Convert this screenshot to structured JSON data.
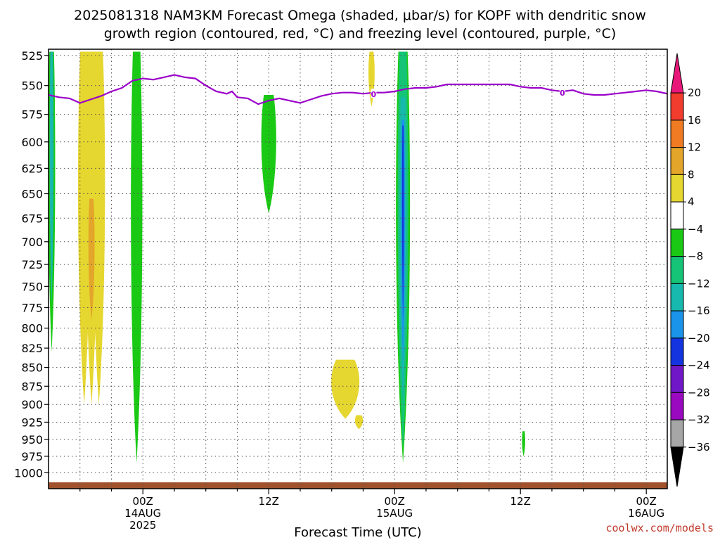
{
  "chart_data": {
    "type": "heatmap",
    "title_line1": "2025081318 NAM3KM Forecast Omega (shaded, μbar/s) for KOPF with dendritic snow",
    "title_line2": "growth region (contoured, red, °C) and freezing level (contoured, purple, °C)",
    "xlabel": "Forecast Time (UTC)",
    "ylabel": "",
    "y_axis": {
      "ticks": [
        525,
        550,
        575,
        600,
        625,
        650,
        675,
        700,
        725,
        750,
        775,
        800,
        825,
        850,
        875,
        900,
        925,
        950,
        975,
        1000
      ],
      "range": [
        1025,
        520
      ],
      "scale": "log-pressure"
    },
    "x_axis": {
      "range_hours": [
        -9,
        50
      ],
      "ticks": [
        {
          "hour": 0,
          "lines": [
            "00Z",
            "14AUG",
            "2025"
          ]
        },
        {
          "hour": 12,
          "lines": [
            "12Z"
          ]
        },
        {
          "hour": 24,
          "lines": [
            "00Z",
            "15AUG"
          ]
        },
        {
          "hour": 36,
          "lines": [
            "12Z"
          ]
        },
        {
          "hour": 48,
          "lines": [
            "00Z",
            "16AUG"
          ]
        }
      ]
    },
    "grid": true,
    "colorbar": {
      "labels": [
        "20",
        "16",
        "12",
        "8",
        "4",
        "−4",
        "−8",
        "−12",
        "−16",
        "−20",
        "−24",
        "−28",
        "−32",
        "−36"
      ],
      "colors": [
        "#e8177a",
        "#f23c2d",
        "#f07b22",
        "#e3a52a",
        "#e6d630",
        "#ffffff",
        "#19c914",
        "#15c477",
        "#17b8ad",
        "#1a94ea",
        "#1434e0",
        "#7018c8",
        "#9a08c0",
        "#a6a6a6",
        "#000000"
      ]
    },
    "freezing_level": {
      "color": "#9b00c9",
      "label": "0",
      "points": [
        [
          -9,
          558
        ],
        [
          -8,
          560
        ],
        [
          -7,
          561
        ],
        [
          -6,
          565
        ],
        [
          -5,
          562
        ],
        [
          -4,
          559
        ],
        [
          -3,
          555
        ],
        [
          -2,
          552
        ],
        [
          -1,
          546
        ],
        [
          0,
          544
        ],
        [
          1,
          545
        ],
        [
          2,
          543
        ],
        [
          3,
          541
        ],
        [
          4,
          543
        ],
        [
          5,
          544
        ],
        [
          6,
          550
        ],
        [
          7,
          555
        ],
        [
          8,
          557
        ],
        [
          8.5,
          555
        ],
        [
          9,
          560
        ],
        [
          10,
          561
        ],
        [
          11,
          566
        ],
        [
          12,
          563
        ],
        [
          13,
          561
        ],
        [
          14,
          563
        ],
        [
          15,
          565
        ],
        [
          16,
          562
        ],
        [
          17,
          559
        ],
        [
          18,
          557
        ],
        [
          19,
          556
        ],
        [
          20,
          556
        ],
        [
          21,
          557
        ],
        [
          22,
          556
        ],
        [
          23,
          556
        ],
        [
          24,
          555
        ],
        [
          25,
          553
        ],
        [
          26,
          552
        ],
        [
          27,
          552
        ],
        [
          28,
          551
        ],
        [
          29,
          549
        ],
        [
          30,
          549
        ],
        [
          31,
          549
        ],
        [
          32,
          549
        ],
        [
          33,
          549
        ],
        [
          34,
          549
        ],
        [
          35,
          549
        ],
        [
          36,
          551
        ],
        [
          37,
          552
        ],
        [
          38,
          552
        ],
        [
          39,
          554
        ],
        [
          40,
          555
        ],
        [
          41,
          554
        ],
        [
          42,
          557
        ],
        [
          43,
          558
        ],
        [
          44,
          558
        ],
        [
          45,
          557
        ],
        [
          46,
          556
        ],
        [
          47,
          555
        ],
        [
          48,
          554
        ],
        [
          49,
          555
        ],
        [
          50,
          557
        ]
      ],
      "label_positions": [
        [
          22,
          557
        ],
        [
          40,
          556
        ]
      ]
    },
    "omega_regions": [
      {
        "color": "#e6d630",
        "value": "4 to 8",
        "x": [
          -5.6,
          -4.9,
          -4.2
        ],
        "top": 522,
        "bottom": 900,
        "w": 0.7
      },
      {
        "color": "#e3a52a",
        "value": "8 to 12",
        "x": [
          -4.9
        ],
        "top": 655,
        "bottom": 790,
        "w": 0.35
      },
      {
        "color": "#e6d630",
        "value": "4 to 8",
        "x": [
          21.8
        ],
        "top": 522,
        "bottom": 568,
        "w": 0.35
      },
      {
        "color": "#e6d630",
        "value": "4 to 8",
        "x": [
          19.3
        ],
        "top": 840,
        "bottom": 920,
        "w": 1.6
      },
      {
        "color": "#e6d630",
        "value": "4 to 8",
        "x": [
          20.6
        ],
        "top": 915,
        "bottom": 935,
        "w": 0.45
      },
      {
        "color": "#19c914",
        "value": "-8 to -4",
        "x": [
          -8.7
        ],
        "top": 522,
        "bottom": 830,
        "w": 0.4
      },
      {
        "color": "#17b8ad",
        "value": "-16 to -12",
        "x": [
          -8.7
        ],
        "top": 522,
        "bottom": 770,
        "w": 0.22
      },
      {
        "color": "#19c914",
        "value": "-8 to -4",
        "x": [
          -0.6
        ],
        "top": 522,
        "bottom": 985,
        "w": 0.65
      },
      {
        "color": "#19c914",
        "value": "-8 to -4",
        "x": [
          12.0
        ],
        "top": 558,
        "bottom": 670,
        "w": 0.85
      },
      {
        "color": "#19c914",
        "value": "-8 to -4",
        "x": [
          24.8
        ],
        "top": 522,
        "bottom": 985,
        "w": 0.8
      },
      {
        "color": "#15c477",
        "value": "-12 to -8",
        "x": [
          24.8
        ],
        "top": 522,
        "bottom": 965,
        "w": 0.6
      },
      {
        "color": "#17b8ad",
        "value": "-16 to -12",
        "x": [
          24.8
        ],
        "top": 560,
        "bottom": 900,
        "w": 0.4
      },
      {
        "color": "#1a94ea",
        "value": "-20 to -16",
        "x": [
          24.8
        ],
        "top": 580,
        "bottom": 845,
        "w": 0.22
      },
      {
        "color": "#1434e0",
        "value": "-24 to -20",
        "x": [
          24.8
        ],
        "top": 585,
        "bottom": 790,
        "w": 0.1
      },
      {
        "color": "#19c914",
        "value": "-8 to -4",
        "x": [
          36.3
        ],
        "top": 938,
        "bottom": 975,
        "w": 0.18
      }
    ],
    "terrain": {
      "color": "#a0522d",
      "surface_pressure": 1015
    }
  },
  "credit": "coolwx.com/models"
}
